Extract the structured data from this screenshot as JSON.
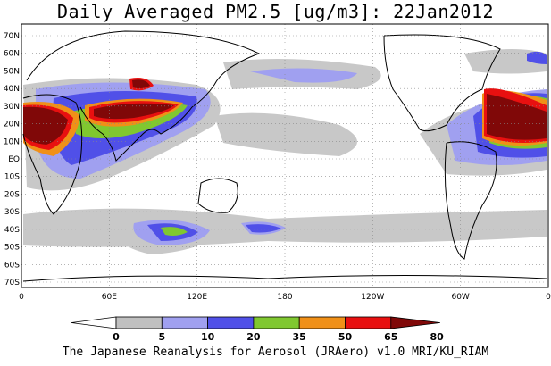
{
  "title": "Daily Averaged PM2.5 [ug/m3]: 22Jan2012",
  "credit": "The Japanese Reanalysis for Aerosol (JRAero) v1.0 MRI/KU_RIAM",
  "map": {
    "lat_labels": [
      "70N",
      "60N",
      "50N",
      "40N",
      "30N",
      "20N",
      "10N",
      "EQ",
      "10S",
      "20S",
      "30S",
      "40S",
      "50S",
      "60S",
      "70S"
    ],
    "lon_labels": [
      "0",
      "60E",
      "120E",
      "180",
      "120W",
      "60W",
      "0"
    ]
  },
  "colorbar": {
    "labels": [
      "0",
      "5",
      "10",
      "20",
      "35",
      "50",
      "65",
      "80"
    ],
    "colors": [
      "#ffffff",
      "#c0c0c0",
      "#a0a0f0",
      "#5050e8",
      "#80c830",
      "#f09018",
      "#e81010",
      "#800808"
    ]
  },
  "colors": {
    "gray": "#c8c8c8",
    "light_blue": "#a0a0f0",
    "blue": "#5050e8",
    "green": "#80c830",
    "orange": "#f09018",
    "red": "#e81010",
    "darkred": "#800808"
  }
}
